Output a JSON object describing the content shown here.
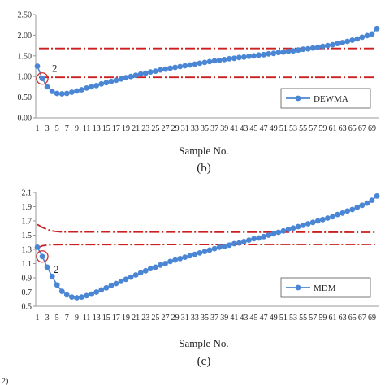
{
  "chart_data": [
    {
      "type": "line",
      "caption": "(b)",
      "xlabel": "Sample No.",
      "ylabel": "",
      "ylim": [
        0,
        2.5
      ],
      "yticks": [
        "0.00",
        "0.50",
        "1.00",
        "1.50",
        "2.00",
        "2.50"
      ],
      "xticks": [
        "1",
        "3",
        "5",
        "7",
        "9",
        "11",
        "13",
        "15",
        "17",
        "19",
        "21",
        "23",
        "25",
        "27",
        "29",
        "31",
        "33",
        "35",
        "37",
        "39",
        "41",
        "43",
        "45",
        "47",
        "49",
        "51",
        "53",
        "55",
        "57",
        "59",
        "61",
        "63",
        "65",
        "67",
        "69"
      ],
      "x_range": [
        1,
        70
      ],
      "grid": false,
      "legend": {
        "position": "bottom-right",
        "entries": [
          "DEWMA"
        ]
      },
      "annotation": {
        "text": "2",
        "marks_sample": 2
      },
      "control_limits": [
        {
          "role": "upper",
          "style": "dash-dot",
          "color": "#cc1f1f",
          "value": 1.68
        },
        {
          "role": "lower",
          "style": "dash-dot",
          "color": "#cc1f1f",
          "value": 0.98
        }
      ],
      "series": [
        {
          "name": "DEWMA",
          "color": "#4a86d4",
          "y": [
            1.25,
            0.95,
            0.75,
            0.64,
            0.59,
            0.58,
            0.59,
            0.62,
            0.65,
            0.68,
            0.72,
            0.75,
            0.78,
            0.82,
            0.85,
            0.88,
            0.91,
            0.94,
            0.97,
            1.0,
            1.03,
            1.06,
            1.08,
            1.11,
            1.13,
            1.16,
            1.18,
            1.2,
            1.22,
            1.24,
            1.26,
            1.28,
            1.3,
            1.32,
            1.34,
            1.36,
            1.38,
            1.39,
            1.41,
            1.43,
            1.44,
            1.46,
            1.47,
            1.49,
            1.5,
            1.52,
            1.53,
            1.55,
            1.56,
            1.58,
            1.59,
            1.61,
            1.62,
            1.64,
            1.66,
            1.67,
            1.69,
            1.71,
            1.73,
            1.75,
            1.77,
            1.8,
            1.82,
            1.85,
            1.88,
            1.91,
            1.95,
            1.99,
            2.03,
            2.16
          ]
        }
      ]
    },
    {
      "type": "line",
      "caption": "(c)",
      "xlabel": "Sample No.",
      "ylabel": "",
      "ylim": [
        0.5,
        2.1
      ],
      "yticks": [
        "0.5",
        "0.7",
        "0.9",
        "1.1",
        "1.3",
        "1.5",
        "1.7",
        "1.9",
        "2.1"
      ],
      "xticks": [
        "1",
        "3",
        "5",
        "7",
        "9",
        "11",
        "13",
        "15",
        "17",
        "19",
        "21",
        "23",
        "25",
        "27",
        "29",
        "31",
        "33",
        "35",
        "37",
        "39",
        "41",
        "43",
        "45",
        "47",
        "49",
        "51",
        "53",
        "55",
        "57",
        "59",
        "61",
        "63",
        "65",
        "67",
        "69"
      ],
      "x_range": [
        1,
        70
      ],
      "grid": false,
      "legend": {
        "position": "bottom-right",
        "entries": [
          "MDM"
        ]
      },
      "annotation": {
        "text": "2",
        "marks_sample": 2
      },
      "control_limits": [
        {
          "role": "upper",
          "style": "dash-dot",
          "color": "#cc1f1f",
          "values": [
            1.65,
            1.61,
            1.58,
            1.56,
            1.55,
            1.545
          ],
          "steady": 1.54
        },
        {
          "role": "lower",
          "style": "dash-dot",
          "color": "#cc1f1f",
          "values": [
            1.32,
            1.35,
            1.36,
            1.365
          ],
          "steady": 1.37
        }
      ],
      "series": [
        {
          "name": "MDM",
          "color": "#4a86d4",
          "y": [
            1.33,
            1.2,
            1.05,
            0.92,
            0.8,
            0.71,
            0.66,
            0.63,
            0.62,
            0.63,
            0.65,
            0.67,
            0.7,
            0.73,
            0.76,
            0.79,
            0.82,
            0.85,
            0.88,
            0.91,
            0.94,
            0.97,
            1.0,
            1.03,
            1.05,
            1.08,
            1.1,
            1.13,
            1.15,
            1.17,
            1.19,
            1.21,
            1.23,
            1.25,
            1.27,
            1.29,
            1.31,
            1.33,
            1.34,
            1.36,
            1.38,
            1.39,
            1.41,
            1.43,
            1.45,
            1.46,
            1.48,
            1.5,
            1.52,
            1.54,
            1.56,
            1.58,
            1.6,
            1.62,
            1.64,
            1.66,
            1.68,
            1.7,
            1.72,
            1.74,
            1.76,
            1.79,
            1.81,
            1.84,
            1.86,
            1.89,
            1.92,
            1.95,
            1.99,
            2.05
          ]
        }
      ]
    }
  ],
  "footer_fragment": "2)"
}
